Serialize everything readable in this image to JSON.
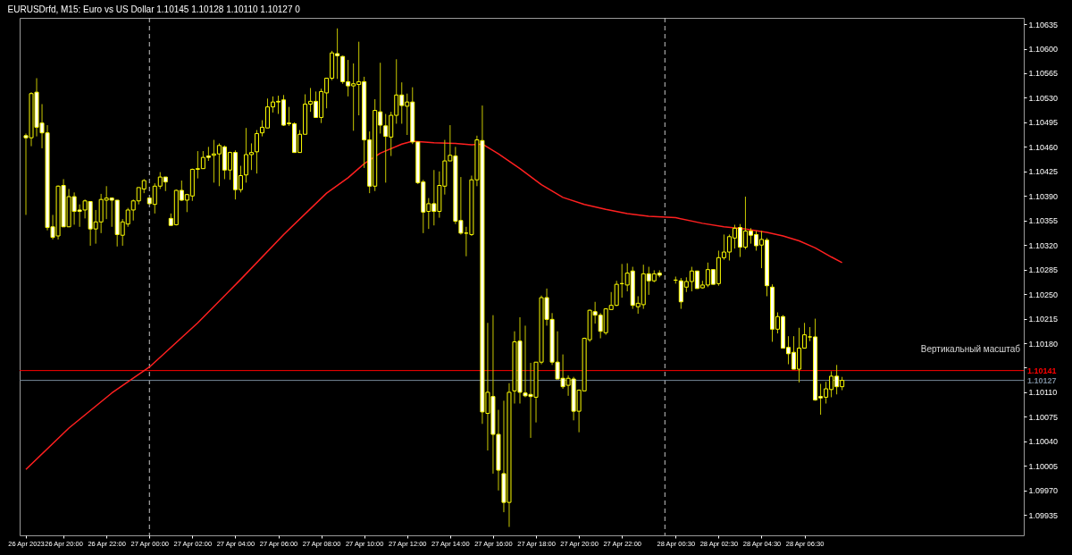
{
  "chart_data": {
    "type": "candlestick",
    "title": "EURUSDrfd, M15:  Euro vs US Dollar  1.10145 1.10128 1.10110 1.10127  0",
    "annotations": [
      "Вертикальный масштаб"
    ],
    "x": [
      "2023-04-26T18:15",
      "2023-04-26T18:30",
      "2023-04-26T18:45",
      "2023-04-26T19:00",
      "2023-04-26T19:15",
      "2023-04-26T19:30",
      "2023-04-26T19:45",
      "2023-04-26T20:00",
      "2023-04-26T20:15",
      "2023-04-26T20:30",
      "2023-04-26T20:45",
      "2023-04-26T21:00",
      "2023-04-26T21:15",
      "2023-04-26T21:30",
      "2023-04-26T21:45",
      "2023-04-26T22:00",
      "2023-04-26T22:15",
      "2023-04-26T22:30",
      "2023-04-26T22:45",
      "2023-04-26T23:00",
      "2023-04-26T23:15",
      "2023-04-26T23:30",
      "2023-04-26T23:45",
      "2023-04-27T00:00",
      "2023-04-27T00:15",
      "2023-04-27T00:30",
      "2023-04-27T00:45",
      "2023-04-27T01:00",
      "2023-04-27T01:15",
      "2023-04-27T01:30",
      "2023-04-27T01:45",
      "2023-04-27T02:00",
      "2023-04-27T02:15",
      "2023-04-27T02:30",
      "2023-04-27T02:45",
      "2023-04-27T03:00",
      "2023-04-27T03:15",
      "2023-04-27T03:30",
      "2023-04-27T03:45",
      "2023-04-27T04:00",
      "2023-04-27T04:15",
      "2023-04-27T04:30",
      "2023-04-27T04:45",
      "2023-04-27T05:00",
      "2023-04-27T05:15",
      "2023-04-27T05:30",
      "2023-04-27T05:45",
      "2023-04-27T06:00",
      "2023-04-27T06:15",
      "2023-04-27T06:30",
      "2023-04-27T06:45",
      "2023-04-27T07:00",
      "2023-04-27T07:15",
      "2023-04-27T07:30",
      "2023-04-27T07:45",
      "2023-04-27T08:00",
      "2023-04-27T08:15",
      "2023-04-27T08:30",
      "2023-04-27T08:45",
      "2023-04-27T09:00",
      "2023-04-27T09:15",
      "2023-04-27T09:30",
      "2023-04-27T09:45",
      "2023-04-27T10:00",
      "2023-04-27T10:15",
      "2023-04-27T10:30",
      "2023-04-27T10:45",
      "2023-04-27T11:00",
      "2023-04-27T11:15",
      "2023-04-27T11:30",
      "2023-04-27T11:45",
      "2023-04-27T12:00",
      "2023-04-27T12:15",
      "2023-04-27T12:30",
      "2023-04-27T12:45",
      "2023-04-27T13:00",
      "2023-04-27T13:15",
      "2023-04-27T13:30",
      "2023-04-27T13:45",
      "2023-04-27T14:00",
      "2023-04-27T14:15",
      "2023-04-27T14:30",
      "2023-04-27T14:45",
      "2023-04-27T15:00",
      "2023-04-27T15:15",
      "2023-04-27T15:30",
      "2023-04-27T15:45",
      "2023-04-27T16:00",
      "2023-04-27T16:15",
      "2023-04-27T16:30",
      "2023-04-27T16:45",
      "2023-04-27T17:00",
      "2023-04-27T17:15",
      "2023-04-27T17:30",
      "2023-04-27T17:45",
      "2023-04-27T18:00",
      "2023-04-27T18:15",
      "2023-04-27T18:30",
      "2023-04-27T18:45",
      "2023-04-27T19:00",
      "2023-04-27T19:15",
      "2023-04-27T19:30",
      "2023-04-27T19:45",
      "2023-04-27T20:00",
      "2023-04-27T20:15",
      "2023-04-27T20:30",
      "2023-04-27T20:45",
      "2023-04-27T21:00",
      "2023-04-27T21:15",
      "2023-04-27T21:30",
      "2023-04-27T21:45",
      "2023-04-27T22:00",
      "2023-04-27T22:15",
      "2023-04-27T22:30",
      "2023-04-27T22:45",
      "2023-04-27T23:00",
      "2023-04-27T23:15",
      "2023-04-27T23:30",
      "2023-04-27T23:45",
      "2023-04-28T00:30",
      "2023-04-28T00:45",
      "2023-04-28T01:00",
      "2023-04-28T01:15",
      "2023-04-28T01:30",
      "2023-04-28T01:45",
      "2023-04-28T02:00",
      "2023-04-28T02:15",
      "2023-04-28T02:30",
      "2023-04-28T02:45",
      "2023-04-28T03:00",
      "2023-04-28T03:15",
      "2023-04-28T03:30",
      "2023-04-28T03:45",
      "2023-04-28T04:00",
      "2023-04-28T04:15",
      "2023-04-28T04:30",
      "2023-04-28T04:45",
      "2023-04-28T05:00",
      "2023-04-28T05:15",
      "2023-04-28T05:30",
      "2023-04-28T05:45",
      "2023-04-28T06:00",
      "2023-04-28T06:15",
      "2023-04-28T06:30",
      "2023-04-28T06:45",
      "2023-04-28T07:00",
      "2023-04-28T07:15",
      "2023-04-28T07:30",
      "2023-04-28T07:45",
      "2023-04-28T08:00",
      "2023-04-28T08:15"
    ],
    "ohlc": [
      [
        1.10476,
        1.10479,
        1.10363,
        1.10473
      ],
      [
        1.10473,
        1.10538,
        1.10461,
        1.10536
      ],
      [
        1.10538,
        1.10558,
        1.10475,
        1.10488
      ],
      [
        1.10494,
        1.10521,
        1.10458,
        1.1048
      ],
      [
        1.1048,
        1.10491,
        1.10341,
        1.10345
      ],
      [
        1.10346,
        1.10363,
        1.10328,
        1.10331
      ],
      [
        1.10333,
        1.10405,
        1.10328,
        1.10404
      ],
      [
        1.10405,
        1.10414,
        1.10346,
        1.10346
      ],
      [
        1.10346,
        1.104,
        1.10346,
        1.10389
      ],
      [
        1.10389,
        1.10395,
        1.10349,
        1.10368
      ],
      [
        1.1037,
        1.10378,
        1.10346,
        1.10368
      ],
      [
        1.1037,
        1.10385,
        1.10358,
        1.10383
      ],
      [
        1.10382,
        1.10382,
        1.10319,
        1.10343
      ],
      [
        1.10343,
        1.1037,
        1.10322,
        1.10353
      ],
      [
        1.10353,
        1.10393,
        1.10337,
        1.10385
      ],
      [
        1.10384,
        1.10404,
        1.10357,
        1.10387
      ],
      [
        1.10387,
        1.10388,
        1.10346,
        1.10384
      ],
      [
        1.10384,
        1.10384,
        1.10318,
        1.10335
      ],
      [
        1.10334,
        1.10357,
        1.10319,
        1.10353
      ],
      [
        1.1035,
        1.10373,
        1.10346,
        1.1037
      ],
      [
        1.1037,
        1.10385,
        1.10355,
        1.10383
      ],
      [
        1.10383,
        1.10402,
        1.10378,
        1.10402
      ],
      [
        1.104,
        1.10414,
        1.10394,
        1.10412
      ],
      [
        1.10387,
        1.10387,
        1.10378,
        1.10379
      ],
      [
        1.10378,
        1.10408,
        1.10365,
        1.10404
      ],
      [
        1.10404,
        1.10424,
        1.104,
        1.10417
      ],
      [
        1.10417,
        1.10417,
        1.10397,
        1.1041
      ],
      [
        1.10358,
        1.10365,
        1.10348,
        1.10348
      ],
      [
        1.10349,
        1.10399,
        1.10348,
        1.10398
      ],
      [
        1.10398,
        1.10412,
        1.10383,
        1.10384
      ],
      [
        1.10384,
        1.10393,
        1.10367,
        1.10392
      ],
      [
        1.1039,
        1.10429,
        1.10383,
        1.10428
      ],
      [
        1.10428,
        1.10454,
        1.10415,
        1.10429
      ],
      [
        1.10429,
        1.10454,
        1.10429,
        1.10445
      ],
      [
        1.10447,
        1.1046,
        1.1044,
        1.10445
      ],
      [
        1.10448,
        1.1047,
        1.10409,
        1.1045
      ],
      [
        1.1045,
        1.10465,
        1.10404,
        1.10462
      ],
      [
        1.1046,
        1.10462,
        1.10414,
        1.10427
      ],
      [
        1.10427,
        1.10453,
        1.10413,
        1.10452
      ],
      [
        1.10452,
        1.10455,
        1.10385,
        1.10399
      ],
      [
        1.10399,
        1.10433,
        1.10395,
        1.10419
      ],
      [
        1.1042,
        1.10487,
        1.10409,
        1.10449
      ],
      [
        1.10449,
        1.10465,
        1.10427,
        1.10452
      ],
      [
        1.10453,
        1.10484,
        1.10422,
        1.10479
      ],
      [
        1.1048,
        1.10498,
        1.10475,
        1.10488
      ],
      [
        1.10487,
        1.10529,
        1.10487,
        1.10517
      ],
      [
        1.10517,
        1.10532,
        1.10509,
        1.10524
      ],
      [
        1.10524,
        1.10533,
        1.10507,
        1.10525
      ],
      [
        1.10527,
        1.10534,
        1.1049,
        1.10491
      ],
      [
        1.10494,
        1.10517,
        1.1049,
        1.10493
      ],
      [
        1.10493,
        1.10495,
        1.10452,
        1.10452
      ],
      [
        1.10452,
        1.10484,
        1.10452,
        1.10478
      ],
      [
        1.10478,
        1.10535,
        1.10478,
        1.10521
      ],
      [
        1.10521,
        1.10544,
        1.1051,
        1.10525
      ],
      [
        1.10525,
        1.10539,
        1.10502,
        1.10502
      ],
      [
        1.10502,
        1.10543,
        1.10494,
        1.10539
      ],
      [
        1.10537,
        1.10558,
        1.10515,
        1.10558
      ],
      [
        1.10558,
        1.10597,
        1.10555,
        1.10594
      ],
      [
        1.10593,
        1.10629,
        1.10557,
        1.1059
      ],
      [
        1.10589,
        1.1059,
        1.1055,
        1.10553
      ],
      [
        1.10553,
        1.10584,
        1.10532,
        1.10547
      ],
      [
        1.10547,
        1.10579,
        1.10483,
        1.1055
      ],
      [
        1.10549,
        1.1061,
        1.10505,
        1.10553
      ],
      [
        1.10553,
        1.1056,
        1.1043,
        1.1047
      ],
      [
        1.1047,
        1.10482,
        1.10394,
        1.10404
      ],
      [
        1.10404,
        1.10528,
        1.10397,
        1.10512
      ],
      [
        1.1051,
        1.1058,
        1.10479,
        1.10491
      ],
      [
        1.1049,
        1.10507,
        1.10409,
        1.10475
      ],
      [
        1.10474,
        1.1051,
        1.10447,
        1.10505
      ],
      [
        1.10505,
        1.10585,
        1.10493,
        1.10534
      ],
      [
        1.10534,
        1.10552,
        1.10493,
        1.10519
      ],
      [
        1.10518,
        1.10536,
        1.10477,
        1.10524
      ],
      [
        1.10524,
        1.10545,
        1.10464,
        1.10467
      ],
      [
        1.10467,
        1.10467,
        1.10407,
        1.10409
      ],
      [
        1.1041,
        1.10413,
        1.10337,
        1.10367
      ],
      [
        1.10368,
        1.10387,
        1.10343,
        1.10379
      ],
      [
        1.10379,
        1.10427,
        1.10348,
        1.10368
      ],
      [
        1.10368,
        1.10425,
        1.10359,
        1.10405
      ],
      [
        1.10404,
        1.1047,
        1.10392,
        1.1044
      ],
      [
        1.1044,
        1.10491,
        1.1044,
        1.10448
      ],
      [
        1.10447,
        1.1046,
        1.1035,
        1.10354
      ],
      [
        1.10355,
        1.10417,
        1.10335,
        1.10337
      ],
      [
        1.10337,
        1.10346,
        1.10304,
        1.10337
      ],
      [
        1.10335,
        1.10419,
        1.10333,
        1.10413
      ],
      [
        1.10413,
        1.10476,
        1.10404,
        1.1047
      ],
      [
        1.10469,
        1.10519,
        1.10065,
        1.10082
      ],
      [
        1.1008,
        1.10209,
        1.10027,
        1.1011
      ],
      [
        1.10104,
        1.1022,
        1.09994,
        1.1005
      ],
      [
        1.1005,
        1.10085,
        1.0997,
        1.09999
      ],
      [
        1.09994,
        1.10098,
        1.09939,
        1.09953
      ],
      [
        1.09953,
        1.10123,
        1.09918,
        1.1011
      ],
      [
        1.10112,
        1.10197,
        1.10094,
        1.10182
      ],
      [
        1.10183,
        1.10217,
        1.10094,
        1.1011
      ],
      [
        1.10109,
        1.10205,
        1.10103,
        1.10105
      ],
      [
        1.10107,
        1.10152,
        1.10045,
        1.10104
      ],
      [
        1.10103,
        1.10153,
        1.10067,
        1.10153
      ],
      [
        1.10153,
        1.10248,
        1.1015,
        1.10245
      ],
      [
        1.10245,
        1.10258,
        1.10205,
        1.10214
      ],
      [
        1.10214,
        1.10223,
        1.10149,
        1.10153
      ],
      [
        1.10153,
        1.10197,
        1.10129,
        1.10129
      ],
      [
        1.1013,
        1.10164,
        1.10115,
        1.10118
      ],
      [
        1.1012,
        1.10134,
        1.10105,
        1.1013
      ],
      [
        1.10129,
        1.10132,
        1.1007,
        1.10083
      ],
      [
        1.10083,
        1.10114,
        1.10053,
        1.10113
      ],
      [
        1.10112,
        1.10188,
        1.10112,
        1.10187
      ],
      [
        1.10185,
        1.10228,
        1.10182,
        1.10227
      ],
      [
        1.10225,
        1.10239,
        1.10208,
        1.1022
      ],
      [
        1.1022,
        1.10223,
        1.10187,
        1.10197
      ],
      [
        1.10195,
        1.1023,
        1.10192,
        1.10229
      ],
      [
        1.10228,
        1.10253,
        1.10228,
        1.10234
      ],
      [
        1.10234,
        1.10269,
        1.10233,
        1.10264
      ],
      [
        1.10265,
        1.10293,
        1.10245,
        1.10265
      ],
      [
        1.10263,
        1.10294,
        1.10254,
        1.1028
      ],
      [
        1.10283,
        1.10289,
        1.10229,
        1.10234
      ],
      [
        1.10232,
        1.10247,
        1.10222,
        1.10237
      ],
      [
        1.10235,
        1.10292,
        1.10229,
        1.10279
      ],
      [
        1.10279,
        1.10289,
        1.10249,
        1.10269
      ],
      [
        1.10269,
        1.10284,
        1.10267,
        1.10279
      ],
      [
        1.1028,
        1.10284,
        1.10274,
        1.10277
      ],
      [
        1.1027,
        1.10275,
        1.10265,
        1.1027
      ],
      [
        1.10269,
        1.10273,
        1.10229,
        1.10239
      ],
      [
        1.1026,
        1.10274,
        1.10253,
        1.10268
      ],
      [
        1.10268,
        1.10289,
        1.10254,
        1.10283
      ],
      [
        1.10283,
        1.10283,
        1.10258,
        1.10258
      ],
      [
        1.10259,
        1.10269,
        1.10258,
        1.10263
      ],
      [
        1.10263,
        1.10295,
        1.1026,
        1.10285
      ],
      [
        1.10285,
        1.10285,
        1.10264,
        1.10264
      ],
      [
        1.10265,
        1.10312,
        1.10262,
        1.10302
      ],
      [
        1.10302,
        1.10335,
        1.10299,
        1.1031
      ],
      [
        1.1031,
        1.10335,
        1.10298,
        1.10332
      ],
      [
        1.1033,
        1.10349,
        1.10315,
        1.10344
      ],
      [
        1.10345,
        1.1035,
        1.10303,
        1.10317
      ],
      [
        1.10317,
        1.10389,
        1.10314,
        1.1034
      ],
      [
        1.1034,
        1.10344,
        1.10322,
        1.10334
      ],
      [
        1.10335,
        1.1034,
        1.10312,
        1.10319
      ],
      [
        1.1032,
        1.1034,
        1.10287,
        1.10328
      ],
      [
        1.10327,
        1.1033,
        1.10247,
        1.10262
      ],
      [
        1.1026,
        1.10264,
        1.10182,
        1.102
      ],
      [
        1.102,
        1.10224,
        1.10194,
        1.10218
      ],
      [
        1.10218,
        1.1022,
        1.10173,
        1.10173
      ],
      [
        1.10174,
        1.1019,
        1.1015,
        1.10165
      ],
      [
        1.10167,
        1.1019,
        1.10143,
        1.10143
      ],
      [
        1.10143,
        1.10202,
        1.10124,
        1.10173
      ],
      [
        1.10173,
        1.10209,
        1.10173,
        1.10192
      ],
      [
        1.10189,
        1.10203,
        1.10183,
        1.10189
      ],
      [
        1.10189,
        1.10215,
        1.10098,
        1.10099
      ],
      [
        1.10104,
        1.10122,
        1.10078,
        1.10102
      ],
      [
        1.10103,
        1.10125,
        1.10094,
        1.10115
      ],
      [
        1.10114,
        1.1014,
        1.10103,
        1.10133
      ],
      [
        1.10133,
        1.10149,
        1.10107,
        1.10118
      ],
      [
        1.10118,
        1.10132,
        1.10113,
        1.10127
      ]
    ],
    "series": [
      {
        "type": "line",
        "color": "#ff2020",
        "x": [
          "2023-04-26T18:15",
          "2023-04-26T20:15",
          "2023-04-26T22:15",
          "2023-04-27T00:00",
          "2023-04-27T02:15",
          "2023-04-27T04:15",
          "2023-04-27T06:15",
          "2023-04-27T08:15",
          "2023-04-27T09:15",
          "2023-04-27T10:00",
          "2023-04-27T10:45",
          "2023-04-27T11:45",
          "2023-04-27T12:15",
          "2023-04-27T13:15",
          "2023-04-27T14:15",
          "2023-04-27T15:00",
          "2023-04-27T15:30",
          "2023-04-27T16:15",
          "2023-04-27T17:15",
          "2023-04-27T18:15",
          "2023-04-27T19:15",
          "2023-04-27T20:15",
          "2023-04-27T21:15",
          "2023-04-27T22:15",
          "2023-04-27T23:15",
          "2023-04-28T00:30",
          "2023-04-28T01:45",
          "2023-04-28T02:45",
          "2023-04-28T03:45",
          "2023-04-28T04:45",
          "2023-04-28T05:30",
          "2023-04-28T06:15",
          "2023-04-28T07:00",
          "2023-04-28T07:45",
          "2023-04-28T08:15"
        ],
        "values": [
          1.1,
          1.10059,
          1.10109,
          1.10146,
          1.10209,
          1.10271,
          1.10335,
          1.10394,
          1.10416,
          1.10436,
          1.10451,
          1.10464,
          1.10468,
          1.10466,
          1.10465,
          1.10463,
          1.10464,
          1.1045,
          1.10429,
          1.10406,
          1.10388,
          1.10378,
          1.10371,
          1.10365,
          1.10361,
          1.10359,
          1.10351,
          1.10346,
          1.10343,
          1.10338,
          1.10333,
          1.10326,
          1.10316,
          1.10303,
          1.10295
        ]
      }
    ],
    "ref_lines": [
      {
        "axis": "x",
        "value": "2023-04-27T00:00",
        "color": "#c8c8c8",
        "line_style": "dashed"
      },
      {
        "axis": "x",
        "value": "2023-04-28T00:00",
        "color": "#c8c8c8",
        "line_style": "dashed"
      },
      {
        "axis": "y",
        "value": 1.10141,
        "label": "1.10141",
        "color": "#ff0000",
        "line_style": "solid"
      },
      {
        "axis": "y",
        "value": 1.10127,
        "label": "1.10127",
        "color": "#778899",
        "line_style": "solid"
      }
    ],
    "xlim": [
      "2023-04-26T18:10",
      "2023-04-28T16:30"
    ],
    "xticks": [
      {
        "value": "2023-04-26T18:15",
        "label": "26 Apr 2023"
      },
      {
        "value": "2023-04-26T20:00",
        "label": "26 Apr 20:00"
      },
      {
        "value": "2023-04-26T22:00",
        "label": "26 Apr 22:00"
      },
      {
        "value": "2023-04-27T00:00",
        "label": "27 Apr 00:00"
      },
      {
        "value": "2023-04-27T02:00",
        "label": "27 Apr 02:00"
      },
      {
        "value": "2023-04-27T04:00",
        "label": "27 Apr 04:00"
      },
      {
        "value": "2023-04-27T06:00",
        "label": "27 Apr 06:00"
      },
      {
        "value": "2023-04-27T08:00",
        "label": "27 Apr 08:00"
      },
      {
        "value": "2023-04-27T10:00",
        "label": "27 Apr 10:00"
      },
      {
        "value": "2023-04-27T12:00",
        "label": "27 Apr 12:00"
      },
      {
        "value": "2023-04-27T14:00",
        "label": "27 Apr 14:00"
      },
      {
        "value": "2023-04-27T16:00",
        "label": "27 Apr 16:00"
      },
      {
        "value": "2023-04-27T18:00",
        "label": "27 Apr 18:00"
      },
      {
        "value": "2023-04-27T20:00",
        "label": "27 Apr 20:00"
      },
      {
        "value": "2023-04-27T22:00",
        "label": "27 Apr 22:00"
      },
      {
        "value": "2023-04-28T00:30",
        "label": "28 Apr 00:30"
      },
      {
        "value": "2023-04-28T02:30",
        "label": "28 Apr 02:30"
      },
      {
        "value": "2023-04-28T04:30",
        "label": "28 Apr 04:30"
      },
      {
        "value": "2023-04-28T06:30",
        "label": "28 Apr 06:30"
      }
    ],
    "ylim": [
      1.09906,
      1.10644
    ],
    "yticks": [
      {
        "value": 1.09935,
        "label": "1.09935"
      },
      {
        "value": 1.0997,
        "label": "1.09970"
      },
      {
        "value": 1.10005,
        "label": "1.10005"
      },
      {
        "value": 1.1004,
        "label": "1.10040"
      },
      {
        "value": 1.10075,
        "label": "1.10075"
      },
      {
        "value": 1.1011,
        "label": "1.10110"
      },
      {
        "value": 1.10145,
        "label": null
      },
      {
        "value": 1.1018,
        "label": "1.10180"
      },
      {
        "value": 1.10215,
        "label": "1.10215"
      },
      {
        "value": 1.1025,
        "label": "1.10250"
      },
      {
        "value": 1.10285,
        "label": "1.10285"
      },
      {
        "value": 1.1032,
        "label": "1.10320"
      },
      {
        "value": 1.10355,
        "label": "1.10355"
      },
      {
        "value": 1.1039,
        "label": "1.10390"
      },
      {
        "value": 1.10425,
        "label": "1.10425"
      },
      {
        "value": 1.1046,
        "label": "1.10460"
      },
      {
        "value": 1.10495,
        "label": "1.10495"
      },
      {
        "value": 1.1053,
        "label": "1.10530"
      },
      {
        "value": 1.10565,
        "label": "1.10565"
      },
      {
        "value": 1.106,
        "label": "1.10600"
      },
      {
        "value": 1.10635,
        "label": "1.10635"
      }
    ]
  }
}
